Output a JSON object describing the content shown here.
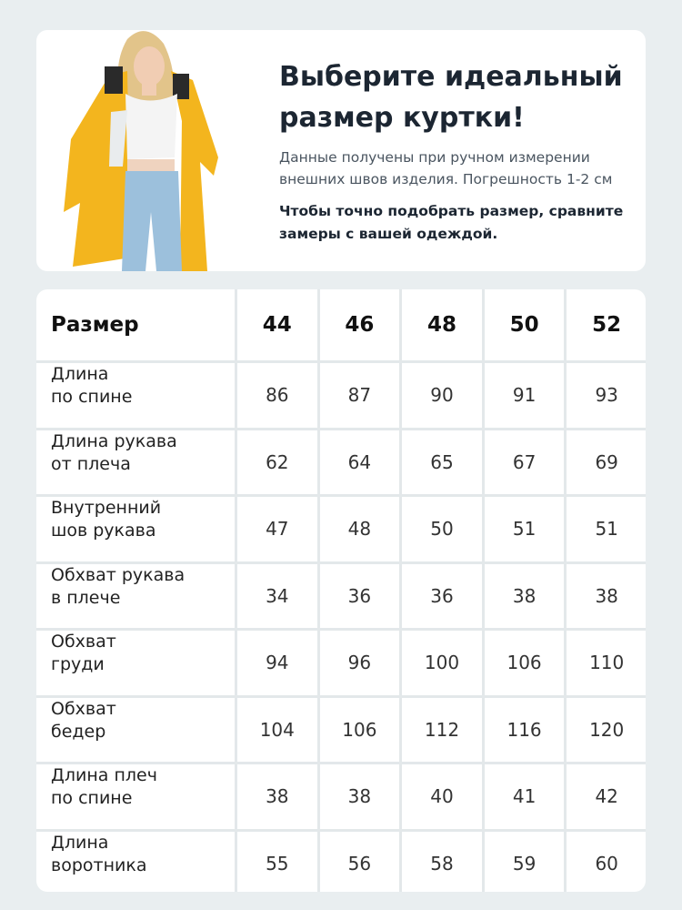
{
  "header": {
    "title": [
      "Выберите идеальный",
      "размер куртки!"
    ],
    "subtitle": [
      "Данные получены при ручном измерении",
      "внешних швов изделия. Погрешность 1-2 см"
    ],
    "note": [
      "Чтобы точно подобрать размер, сравните",
      "замеры с вашей одеждой."
    ]
  },
  "table": {
    "columns": [
      "Размер",
      44,
      46,
      48,
      50,
      52
    ],
    "rows": [
      [
        [
          "Длина",
          "по спине"
        ],
        86,
        87,
        90,
        91,
        93
      ],
      [
        [
          "Длина рукава",
          "от плеча"
        ],
        62,
        64,
        65,
        67,
        69
      ],
      [
        [
          "Внутренний",
          "шов рукава"
        ],
        47,
        48,
        50,
        51,
        51
      ],
      [
        [
          "Обхват рукава",
          "в плече"
        ],
        34,
        36,
        36,
        38,
        38
      ],
      [
        [
          "Обхват",
          "груди"
        ],
        94,
        96,
        100,
        106,
        110
      ],
      [
        [
          "Обхват",
          "бедер"
        ],
        104,
        106,
        112,
        116,
        120
      ],
      [
        [
          "Длина плеч",
          "по спине"
        ],
        38,
        38,
        40,
        41,
        42
      ],
      [
        [
          "Длина",
          "воротника"
        ],
        55,
        56,
        58,
        59,
        60
      ]
    ]
  }
}
